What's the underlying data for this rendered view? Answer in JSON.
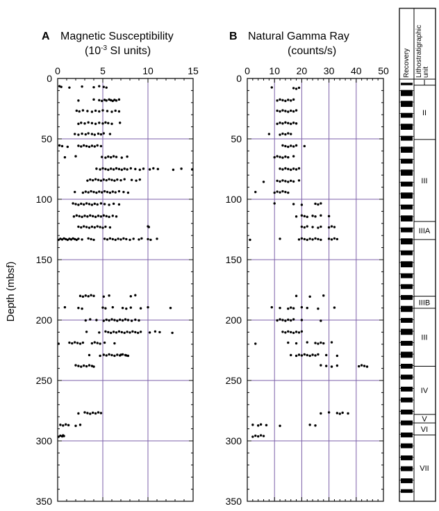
{
  "figure": {
    "ylabel": "Depth (mbsf)",
    "colors": {
      "grid": "#7b5fa8",
      "points": "#000000",
      "frame": "#000000"
    }
  },
  "chart_data": [
    {
      "type": "scatter",
      "panel_letter": "A",
      "title": "Magnetic Susceptibility",
      "subtitle_prefix": "(10",
      "subtitle_exp": "-3",
      "subtitle_suffix": " SI units)",
      "xlim": [
        0,
        15
      ],
      "ylim": [
        0,
        350
      ],
      "xticks": [
        0,
        5,
        10,
        15
      ],
      "yticks": [
        0,
        50,
        100,
        150,
        200,
        250,
        300,
        350
      ],
      "y_inverted": true,
      "x_axis_position": "top",
      "grid": true,
      "depth_bands": [
        {
          "depth": 7,
          "x": [
            0.2,
            0.4,
            1.3,
            2.7,
            4.0,
            4.6,
            5.1,
            5.4
          ]
        },
        {
          "depth": 18,
          "x": [
            2.3,
            4.0,
            4.6,
            4.9,
            5.2,
            5.4,
            5.7,
            5.9,
            6.1,
            6.3,
            6.5,
            6.8
          ]
        },
        {
          "depth": 27,
          "x": [
            2.1,
            2.4,
            2.8,
            3.3,
            3.8,
            4.2,
            4.6,
            5.0,
            5.5,
            6.0,
            6.4,
            6.8
          ]
        },
        {
          "depth": 37,
          "x": [
            2.3,
            2.6,
            3.0,
            3.4,
            3.8,
            4.2,
            4.6,
            5.0,
            5.3,
            5.6,
            6.0,
            6.9
          ]
        },
        {
          "depth": 46,
          "x": [
            1.9,
            2.3,
            2.7,
            3.1,
            3.4,
            3.8,
            4.1,
            4.5,
            4.8,
            5.1,
            5.8
          ]
        },
        {
          "depth": 56,
          "x": [
            0.2,
            0.5,
            1.1,
            2.3,
            2.6,
            2.9,
            3.2,
            3.5,
            3.8,
            4.1,
            4.4,
            4.8
          ]
        },
        {
          "depth": 65,
          "x": [
            0.8,
            2.0,
            4.9,
            5.3,
            5.6,
            5.9,
            6.2,
            6.5,
            7.1,
            7.7
          ]
        },
        {
          "depth": 75,
          "x": [
            4.3,
            4.7,
            5.0,
            5.3,
            5.6,
            5.9,
            6.2,
            6.5,
            6.8,
            7.1,
            7.4,
            7.7,
            8.1,
            8.6,
            9.1,
            9.5,
            10.2,
            10.6,
            11.1,
            12.8,
            13.7,
            14.9
          ]
        },
        {
          "depth": 84,
          "x": [
            3.3,
            3.6,
            3.9,
            4.2,
            4.5,
            4.8,
            5.1,
            5.4,
            5.7,
            6.0,
            6.3,
            6.6,
            7.0,
            7.4,
            8.2,
            8.7,
            9.1
          ]
        },
        {
          "depth": 94,
          "x": [
            1.9,
            2.8,
            3.1,
            3.4,
            3.7,
            4.0,
            4.3,
            4.6,
            4.9,
            5.2,
            5.5,
            5.8,
            6.1,
            6.4,
            6.8,
            7.3,
            7.8
          ]
        },
        {
          "depth": 104,
          "x": [
            1.7,
            2.0,
            2.3,
            2.6,
            2.9,
            3.2,
            3.5,
            3.8,
            4.1,
            4.4,
            4.8,
            5.2,
            5.7,
            6.2,
            6.8
          ]
        },
        {
          "depth": 114,
          "x": [
            1.8,
            2.1,
            2.4,
            2.7,
            3.0,
            3.3,
            3.6,
            3.9,
            4.2,
            4.5,
            4.8,
            5.1,
            5.4,
            5.7,
            6.1,
            6.5
          ]
        },
        {
          "depth": 123,
          "x": [
            2.3,
            2.6,
            2.9,
            3.2,
            3.5,
            3.8,
            4.1,
            4.4,
            4.7,
            5.0,
            5.3,
            5.8,
            10.0,
            10.1
          ]
        },
        {
          "depth": 133,
          "x": [
            0.1,
            0.3,
            0.5,
            0.7,
            0.9,
            1.1,
            1.3,
            1.5,
            1.7,
            1.9,
            2.1,
            2.3,
            2.7,
            3.4,
            3.7,
            4.0,
            5.2,
            5.5,
            5.8,
            6.1,
            6.4,
            6.7,
            7.0,
            7.3,
            7.6,
            8.0,
            8.4,
            9.0,
            9.3,
            10.0,
            10.3,
            11.0
          ]
        },
        {
          "depth": 180,
          "x": [
            2.5,
            2.8,
            3.1,
            3.4,
            3.7,
            4.0,
            5.1,
            5.7,
            8.1,
            8.6
          ]
        },
        {
          "depth": 190,
          "x": [
            0.8,
            2.3,
            2.7,
            5.0,
            5.3,
            6.1,
            7.2,
            7.6,
            8.1,
            9.2,
            10.0,
            12.5
          ]
        },
        {
          "depth": 200,
          "x": [
            3.1,
            3.6,
            4.3,
            5.1,
            5.4,
            5.7,
            6.0,
            6.3,
            6.6,
            6.9,
            7.2,
            7.5,
            7.8,
            8.2,
            8.6,
            9.0
          ]
        },
        {
          "depth": 210,
          "x": [
            3.2,
            4.6,
            5.3,
            5.6,
            5.9,
            6.2,
            6.5,
            6.8,
            7.1,
            7.4,
            7.7,
            8.0,
            8.3,
            8.6,
            8.9,
            9.2,
            10.2,
            10.8,
            11.3,
            12.7
          ]
        },
        {
          "depth": 219,
          "x": [
            0.1,
            1.3,
            1.6,
            1.9,
            2.2,
            2.5,
            2.8,
            3.8,
            4.1,
            4.4,
            4.7,
            5.2,
            6.3
          ]
        },
        {
          "depth": 229,
          "x": [
            3.5,
            4.7,
            5.1,
            5.4,
            5.7,
            6.0,
            6.3,
            6.6,
            6.9,
            7.2,
            7.5,
            7.8,
            7.0,
            7.6
          ]
        },
        {
          "depth": 238,
          "x": [
            2.0,
            2.3,
            2.6,
            2.9,
            3.2,
            3.5,
            3.8,
            4.0
          ]
        },
        {
          "depth": 277,
          "x": [
            2.3,
            3.0,
            3.3,
            3.6,
            3.9,
            4.2,
            4.5,
            4.8
          ]
        },
        {
          "depth": 287,
          "x": [
            0.3,
            0.6,
            0.9,
            1.2,
            2.0,
            2.5
          ]
        },
        {
          "depth": 296,
          "x": [
            0.1,
            0.3,
            0.5,
            0.6,
            0.7
          ]
        }
      ]
    },
    {
      "type": "scatter",
      "panel_letter": "B",
      "title": "Natural Gamma Ray",
      "subtitle": "(counts/s)",
      "xlim": [
        0,
        50
      ],
      "ylim": [
        0,
        350
      ],
      "xticks": [
        0,
        10,
        20,
        30,
        40,
        50
      ],
      "yticks": [
        0,
        50,
        100,
        150,
        200,
        250,
        300,
        350
      ],
      "y_inverted": true,
      "x_axis_position": "top",
      "grid": true,
      "depth_bands": [
        {
          "depth": 8,
          "x": [
            9,
            17,
            18,
            19
          ]
        },
        {
          "depth": 18,
          "x": [
            11,
            12,
            13,
            14,
            15,
            16,
            17
          ]
        },
        {
          "depth": 27,
          "x": [
            11,
            12,
            13,
            14,
            15,
            16,
            17,
            18
          ]
        },
        {
          "depth": 37,
          "x": [
            11,
            12,
            13,
            14,
            15,
            16,
            17,
            18
          ]
        },
        {
          "depth": 46,
          "x": [
            8,
            12,
            13,
            14,
            15,
            16
          ]
        },
        {
          "depth": 56,
          "x": [
            13,
            14,
            15,
            16,
            17,
            18,
            21
          ]
        },
        {
          "depth": 65,
          "x": [
            10,
            11,
            12,
            13,
            14,
            15,
            17
          ]
        },
        {
          "depth": 75,
          "x": [
            12,
            13,
            14,
            15,
            16,
            17,
            18,
            19
          ]
        },
        {
          "depth": 85,
          "x": [
            6,
            11,
            12,
            13,
            14,
            15,
            16,
            17,
            19
          ]
        },
        {
          "depth": 94,
          "x": [
            3,
            10,
            11,
            12,
            13,
            14,
            15
          ]
        },
        {
          "depth": 104,
          "x": [
            10,
            17,
            20,
            25,
            26,
            27
          ]
        },
        {
          "depth": 114,
          "x": [
            18,
            20,
            21,
            22,
            24,
            25,
            27,
            30
          ]
        },
        {
          "depth": 123,
          "x": [
            20,
            21,
            22,
            24,
            26,
            27,
            30,
            31,
            32
          ]
        },
        {
          "depth": 133,
          "x": [
            1,
            12,
            19,
            20,
            21,
            22,
            23,
            24,
            25,
            26,
            27,
            30,
            31,
            32,
            33
          ]
        },
        {
          "depth": 180,
          "x": [
            18,
            23,
            28
          ]
        },
        {
          "depth": 190,
          "x": [
            9,
            12,
            15,
            16,
            17,
            20,
            22,
            26,
            32
          ]
        },
        {
          "depth": 200,
          "x": [
            11,
            12,
            13,
            14,
            15,
            16,
            17,
            20,
            27
          ]
        },
        {
          "depth": 210,
          "x": [
            13,
            14,
            15,
            16,
            17,
            18,
            19,
            20
          ]
        },
        {
          "depth": 219,
          "x": [
            3,
            15,
            18,
            22,
            25,
            26,
            27,
            28,
            31
          ]
        },
        {
          "depth": 229,
          "x": [
            16,
            18,
            19,
            20,
            21,
            22,
            23,
            24,
            25,
            26,
            29,
            33
          ]
        },
        {
          "depth": 238,
          "x": [
            27,
            29,
            31,
            33,
            41,
            42,
            43,
            44
          ]
        },
        {
          "depth": 277,
          "x": [
            27,
            30,
            33,
            34,
            35,
            37
          ]
        },
        {
          "depth": 287,
          "x": [
            2,
            4,
            5,
            7,
            12,
            23,
            25
          ]
        },
        {
          "depth": 296,
          "x": [
            2,
            3,
            4,
            5,
            6
          ]
        }
      ]
    }
  ],
  "strat_column": {
    "header_recovery": "Recovery",
    "header_unit": "Lithostratigraphic unit",
    "recovery_cores": [
      [
        3,
        5
      ],
      [
        9,
        14
      ],
      [
        18,
        23
      ],
      [
        28,
        32
      ],
      [
        37,
        42
      ],
      [
        47,
        51
      ],
      [
        56,
        61
      ],
      [
        66,
        70
      ],
      [
        75,
        80
      ],
      [
        85,
        89
      ],
      [
        94,
        99
      ],
      [
        104,
        108
      ],
      [
        113,
        118
      ],
      [
        123,
        127
      ],
      [
        132,
        137
      ],
      [
        142,
        146
      ],
      [
        151,
        156
      ],
      [
        161,
        165
      ],
      [
        170,
        174
      ],
      [
        179,
        183
      ],
      [
        188,
        193
      ],
      [
        198,
        202
      ],
      [
        207,
        212
      ],
      [
        217,
        221
      ],
      [
        226,
        231
      ],
      [
        236,
        240
      ],
      [
        245,
        249
      ],
      [
        255,
        259
      ],
      [
        264,
        268
      ],
      [
        274,
        278
      ],
      [
        283,
        287
      ],
      [
        293,
        297
      ],
      [
        302,
        306
      ],
      [
        312,
        316
      ],
      [
        321,
        325
      ],
      [
        331,
        335
      ],
      [
        340,
        343
      ]
    ],
    "unit_boundaries": [
      5,
      50,
      118,
      133,
      180,
      190,
      238,
      278,
      285,
      295,
      350
    ],
    "units": [
      {
        "label": "I",
        "top": 0,
        "bottom": 5
      },
      {
        "label": "II",
        "top": 5,
        "bottom": 50
      },
      {
        "label": "III",
        "top": 50,
        "bottom": 118
      },
      {
        "label": "IIIA",
        "top": 118,
        "bottom": 133
      },
      {
        "label": "IIIB",
        "top": 180,
        "bottom": 190
      },
      {
        "label": "III",
        "top": 190,
        "bottom": 238
      },
      {
        "label": "IV",
        "top": 238,
        "bottom": 278
      },
      {
        "label": "V",
        "top": 278,
        "bottom": 285
      },
      {
        "label": "VI",
        "top": 285,
        "bottom": 295
      },
      {
        "label": "VII",
        "top": 295,
        "bottom": 350
      }
    ]
  }
}
